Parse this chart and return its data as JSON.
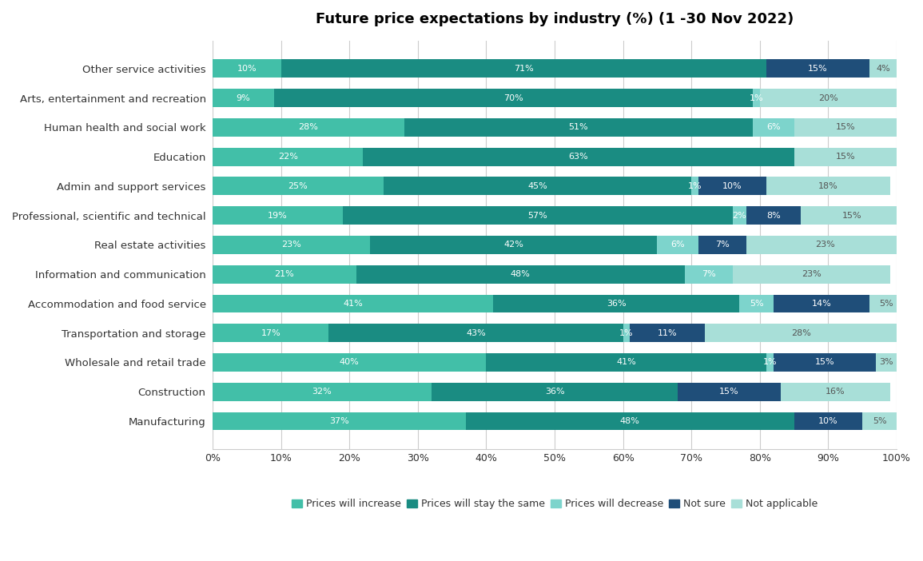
{
  "title": "Future price expectations by industry (%) (1 -30 Nov 2022)",
  "categories": [
    "Other service activities",
    "Arts, entertainment and recreation",
    "Human health and social work",
    "Education",
    "Admin and support services",
    "Professional, scientific and technical",
    "Real estate activities",
    "Information and communication",
    "Accommodation and food service",
    "Transportation and storage",
    "Wholesale and retail trade",
    "Construction",
    "Manufacturing"
  ],
  "series": {
    "Prices will increase": [
      10,
      9,
      28,
      22,
      25,
      19,
      23,
      21,
      41,
      17,
      40,
      32,
      37
    ],
    "Prices will stay the same": [
      71,
      70,
      51,
      63,
      45,
      57,
      42,
      48,
      36,
      43,
      41,
      36,
      48
    ],
    "Prices will decrease": [
      0,
      1,
      6,
      0,
      1,
      2,
      6,
      7,
      5,
      1,
      1,
      0,
      0
    ],
    "Not sure": [
      15,
      0,
      0,
      0,
      10,
      8,
      7,
      0,
      14,
      11,
      15,
      15,
      10
    ],
    "Not applicable": [
      4,
      20,
      15,
      15,
      18,
      15,
      23,
      23,
      5,
      28,
      3,
      16,
      5
    ]
  },
  "colors": {
    "Prices will increase": "#42bfa8",
    "Prices will stay the same": "#1a8c82",
    "Prices will decrease": "#7dd4cc",
    "Not sure": "#1f4e79",
    "Not applicable": "#a8dfd8"
  },
  "label_colors": {
    "Prices will increase": "white",
    "Prices will stay the same": "white",
    "Prices will decrease": "white",
    "Not sure": "white",
    "Not applicable": "#555555"
  },
  "background_color": "#ffffff",
  "text_color": "#333333",
  "bar_height": 0.62,
  "figsize": [
    11.55,
    7.02
  ],
  "dpi": 100
}
